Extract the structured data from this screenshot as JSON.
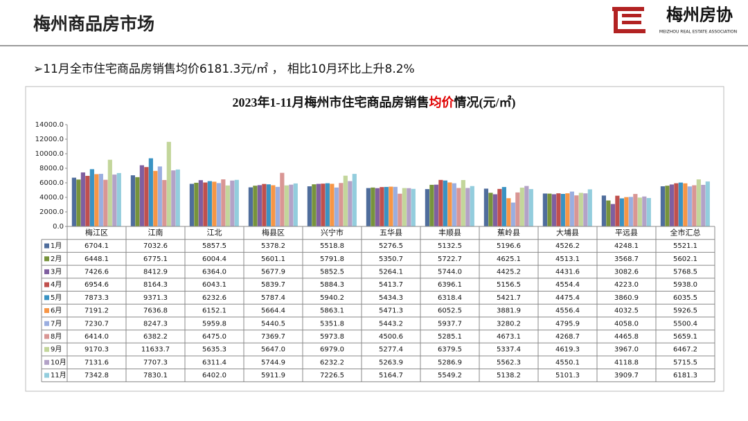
{
  "header": {
    "title": "梅州商品房市场",
    "logo_text": "梅州房协",
    "logo_subtext": "MEIZHOU REAL ESTATE ASSOCIATION",
    "summary": "➢11月全市住宅商品房销售均价6181.3元/㎡ ， 相比10月环比上升8.2%"
  },
  "chart_data": {
    "type": "bar",
    "title": [
      "2023年1-11月梅州市住宅商品房销售",
      "均价",
      "情况(元/㎡)"
    ],
    "categories": [
      "梅江区",
      "江南",
      "江北",
      "梅县区",
      "兴宁市",
      "五华县",
      "丰顺县",
      "蕉岭县",
      "大埔县",
      "平远县",
      "全市汇总"
    ],
    "ylim": [
      0,
      14000
    ],
    "yticks": [
      {
        "value": 0,
        "label": "0.0"
      },
      {
        "value": 2000,
        "label": "2000.0"
      },
      {
        "value": 4000,
        "label": "4000.0"
      },
      {
        "value": 6000,
        "label": "6000.0"
      },
      {
        "value": 8000,
        "label": "8000.0"
      },
      {
        "value": 10000,
        "label": "10000.0"
      },
      {
        "value": 12000,
        "label": "12000.0"
      },
      {
        "value": 14000,
        "label": "14000.0"
      }
    ],
    "series": [
      {
        "name": "1月",
        "color": "#4f6d9c",
        "values": [
          6704.1,
          7032.6,
          5857.5,
          5378.2,
          5518.8,
          5276.5,
          5132.5,
          5196.6,
          4526.2,
          4248.1,
          5521.1
        ],
        "value_labels": [
          "6704.1",
          "7032.6",
          "5857.5",
          "5378.2",
          "5518.8",
          "5276.5",
          "5132.5",
          "5196.6",
          "4526.2",
          "4248.1",
          "5521.1"
        ]
      },
      {
        "name": "2月",
        "color": "#77933c",
        "values": [
          6448.1,
          6775.1,
          6004.4,
          5601.1,
          5791.8,
          5350.7,
          5722.7,
          4625.1,
          4513.1,
          3568.7,
          5602.1
        ],
        "value_labels": [
          "6448.1",
          "6775.1",
          "6004.4",
          "5601.1",
          "5791.8",
          "5350.7",
          "5722.7",
          "4625.1",
          "4513.1",
          "3568.7",
          "5602.1"
        ]
      },
      {
        "name": "3月",
        "color": "#7f5fa0",
        "values": [
          7426.6,
          8412.9,
          6364.0,
          5677.9,
          5852.5,
          5264.1,
          5744.0,
          4425.2,
          4431.6,
          3082.6,
          5768.5
        ],
        "value_labels": [
          "7426.6",
          "8412.9",
          "6364.0",
          "5677.9",
          "5852.5",
          "5264.1",
          "5744.0",
          "4425.2",
          "4431.6",
          "3082.6",
          "5768.5"
        ]
      },
      {
        "name": "4月",
        "color": "#c0504d",
        "values": [
          6954.6,
          8164.3,
          6043.1,
          5839.7,
          5884.3,
          5413.7,
          6396.1,
          5156.5,
          4554.4,
          4223.0,
          5938.0
        ],
        "value_labels": [
          "6954.6",
          "8164.3",
          "6043.1",
          "5839.7",
          "5884.3",
          "5413.7",
          "6396.1",
          "5156.5",
          "4554.4",
          "4223.0",
          "5938.0"
        ]
      },
      {
        "name": "5月",
        "color": "#3a93c3",
        "values": [
          7873.3,
          9371.3,
          6232.6,
          5787.4,
          5940.2,
          5434.3,
          6318.4,
          5421.7,
          4475.4,
          3860.9,
          6035.5
        ],
        "value_labels": [
          "7873.3",
          "9371.3",
          "6232.6",
          "5787.4",
          "5940.2",
          "5434.3",
          "6318.4",
          "5421.7",
          "4475.4",
          "3860.9",
          "6035.5"
        ]
      },
      {
        "name": "6月",
        "color": "#f79646",
        "values": [
          7191.2,
          7636.8,
          6152.1,
          5664.4,
          5863.1,
          5471.3,
          6052.5,
          3881.9,
          4556.4,
          4032.5,
          5926.5
        ],
        "value_labels": [
          "7191.2",
          "7636.8",
          "6152.1",
          "5664.4",
          "5863.1",
          "5471.3",
          "6052.5",
          "3881.9",
          "4556.4",
          "4032.5",
          "5926.5"
        ]
      },
      {
        "name": "7月",
        "color": "#9aaee0",
        "values": [
          7230.7,
          8247.3,
          5959.8,
          5440.5,
          5351.8,
          5443.2,
          5937.7,
          3280.2,
          4795.9,
          4058.0,
          5500.4
        ],
        "value_labels": [
          "7230.7",
          "8247.3",
          "5959.8",
          "5440.5",
          "5351.8",
          "5443.2",
          "5937.7",
          "3280.2",
          "4795.9",
          "4058.0",
          "5500.4"
        ]
      },
      {
        "name": "8月",
        "color": "#d99694",
        "values": [
          6414.0,
          6382.2,
          6475.0,
          7369.7,
          5973.8,
          4500.6,
          5285.1,
          4673.1,
          4268.7,
          4465.8,
          5659.1
        ],
        "value_labels": [
          "6414.0",
          "6382.2",
          "6475.0",
          "7369.7",
          "5973.8",
          "4500.6",
          "5285.1",
          "4673.1",
          "4268.7",
          "4465.8",
          "5659.1"
        ]
      },
      {
        "name": "9月",
        "color": "#c3d69b",
        "values": [
          9170.3,
          11633.7,
          5635.3,
          5647.0,
          6979.0,
          5277.4,
          6379.5,
          5337.4,
          4619.3,
          3967.0,
          6467.2
        ],
        "value_labels": [
          "9170.3",
          "11633.7",
          "5635.3",
          "5647.0",
          "6979.0",
          "5277.4",
          "6379.5",
          "5337.4",
          "4619.3",
          "3967.0",
          "6467.2"
        ]
      },
      {
        "name": "10月",
        "color": "#b3a2c7",
        "values": [
          7131.6,
          7707.3,
          6311.4,
          5744.9,
          6232.2,
          5263.9,
          5286.9,
          5562.3,
          4550.1,
          4118.8,
          5715.5
        ],
        "value_labels": [
          "7131.6",
          "7707.3",
          "6311.4",
          "5744.9",
          "6232.2",
          "5263.9",
          "5286.9",
          "5562.3",
          "4550.1",
          "4118.8",
          "5715.5"
        ]
      },
      {
        "name": "11月",
        "color": "#93cddd",
        "values": [
          7342.8,
          7830.1,
          6402.0,
          5911.9,
          7226.5,
          5164.7,
          5549.2,
          5138.2,
          5101.3,
          3909.7,
          6181.3
        ],
        "value_labels": [
          "7342.8",
          "7830.1",
          "6402.0",
          "5911.9",
          "7226.5",
          "5164.7",
          "5549.2",
          "5138.2",
          "5101.3",
          "3909.7",
          "6181.3"
        ]
      }
    ]
  }
}
